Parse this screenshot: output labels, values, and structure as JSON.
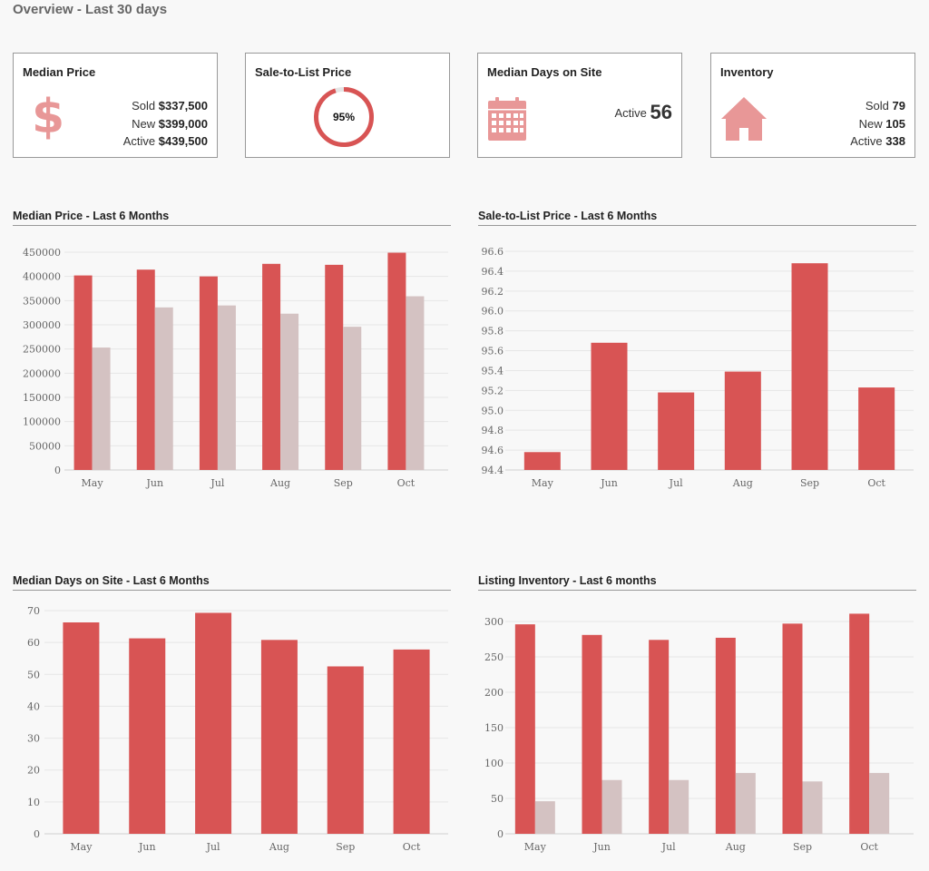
{
  "header": {
    "title": "Overview - Last 30 days"
  },
  "colors": {
    "primary": "#d85454",
    "secondary": "#d4c2c2",
    "icon": "#e89797",
    "grid": "#e6e6e6"
  },
  "cards": {
    "median_price": {
      "title": "Median Price",
      "icon": "dollar-icon",
      "sold_label": "Sold",
      "sold_value": "$337,500",
      "new_label": "New",
      "new_value": "$399,000",
      "active_label": "Active",
      "active_value": "$439,500"
    },
    "sale_to_list": {
      "title": "Sale-to-List Price",
      "percent_label": "95%",
      "percent": 95
    },
    "median_days": {
      "title": "Median Days on Site",
      "icon": "calendar-icon",
      "active_label": "Active",
      "active_value": "56"
    },
    "inventory": {
      "title": "Inventory",
      "icon": "house-icon",
      "sold_label": "Sold",
      "sold_value": "79",
      "new_label": "New",
      "new_value": "105",
      "active_label": "Active",
      "active_value": "338"
    }
  },
  "chart_data": [
    {
      "id": "median-price",
      "type": "bar",
      "title": "Median Price - Last 6 Months",
      "categories": [
        "May",
        "Jun",
        "Jul",
        "Aug",
        "Sep",
        "Oct"
      ],
      "series": [
        {
          "values": [
            402000,
            414000,
            400000,
            426000,
            424000,
            449000
          ]
        },
        {
          "values": [
            253000,
            336000,
            340000,
            323000,
            296000,
            359000
          ]
        }
      ],
      "ylim": [
        0,
        450000
      ],
      "yticks": [
        0,
        50000,
        100000,
        150000,
        200000,
        250000,
        300000,
        350000,
        400000,
        450000
      ],
      "ytick_labels": [
        "0",
        "50000",
        "100000",
        "150000",
        "200000",
        "250000",
        "300000",
        "350000",
        "400000",
        "450000"
      ]
    },
    {
      "id": "sale-to-list",
      "type": "bar",
      "title": "Sale-to-List Price - Last 6 Months",
      "categories": [
        "May",
        "Jun",
        "Jul",
        "Aug",
        "Sep",
        "Oct"
      ],
      "series": [
        {
          "values": [
            94.58,
            95.68,
            95.18,
            95.39,
            96.48,
            95.23
          ]
        }
      ],
      "ylim": [
        94.4,
        96.6
      ],
      "yticks": [
        94.4,
        94.6,
        94.8,
        95.0,
        95.2,
        95.4,
        95.6,
        95.8,
        96.0,
        96.2,
        96.4,
        96.6
      ],
      "ytick_labels": [
        "94.4",
        "94.6",
        "94.8",
        "95.0",
        "95.2",
        "95.4",
        "95.6",
        "95.8",
        "96.0",
        "96.2",
        "96.4",
        "96.6"
      ]
    },
    {
      "id": "median-days",
      "type": "bar",
      "title": "Median Days on Site - Last 6 Months",
      "categories": [
        "May",
        "Jun",
        "Jul",
        "Aug",
        "Sep",
        "Oct"
      ],
      "series": [
        {
          "values": [
            66.3,
            61.3,
            69.3,
            60.8,
            52.5,
            57.8
          ]
        }
      ],
      "ylim": [
        0,
        70
      ],
      "yticks": [
        0,
        10,
        20,
        30,
        40,
        50,
        60,
        70
      ],
      "ytick_labels": [
        "0",
        "10",
        "20",
        "30",
        "40",
        "50",
        "60",
        "70"
      ]
    },
    {
      "id": "listing-inventory",
      "type": "bar",
      "title": "Listing Inventory - Last 6 months",
      "categories": [
        "May",
        "Jun",
        "Jul",
        "Aug",
        "Sep",
        "Oct"
      ],
      "series": [
        {
          "values": [
            296,
            281,
            274,
            277,
            297,
            311
          ]
        },
        {
          "values": [
            46,
            76,
            76,
            86,
            74,
            86
          ]
        }
      ],
      "ylim": [
        0,
        300
      ],
      "yticks": [
        0,
        50,
        100,
        150,
        200,
        250,
        300
      ],
      "ytick_labels": [
        "0",
        "50",
        "100",
        "150",
        "200",
        "250",
        "300"
      ]
    }
  ]
}
